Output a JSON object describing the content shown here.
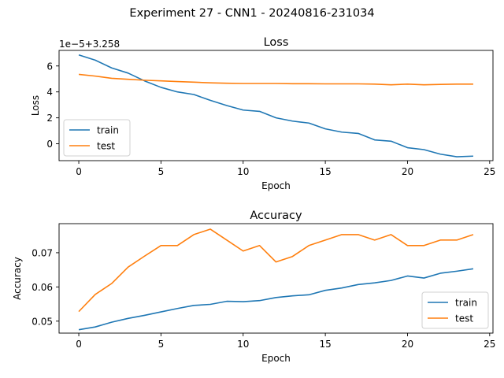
{
  "figure": {
    "title": "Experiment 27 - CNN1 - 20240816-231034"
  },
  "colors": {
    "train": "#1f77b4",
    "test": "#ff7f0e"
  },
  "chart_data": [
    {
      "type": "line",
      "title": "Loss",
      "xlabel": "Epoch",
      "ylabel": "Loss",
      "offset_label": "1e−5+3.258",
      "xlim": [
        -1.2,
        25.2
      ],
      "ylim": [
        -1.3,
        7.2
      ],
      "xticks": [
        0,
        5,
        10,
        15,
        20,
        25
      ],
      "yticks": [
        0,
        2,
        4,
        6
      ],
      "legend_position": "lower-left",
      "x": [
        0,
        1,
        2,
        3,
        4,
        5,
        6,
        7,
        8,
        9,
        10,
        11,
        12,
        13,
        14,
        15,
        16,
        17,
        18,
        19,
        20,
        21,
        22,
        23,
        24
      ],
      "series": [
        {
          "name": "train",
          "values": [
            6.85,
            6.45,
            5.85,
            5.45,
            4.85,
            4.35,
            4.0,
            3.8,
            3.35,
            2.95,
            2.6,
            2.5,
            2.0,
            1.75,
            1.6,
            1.15,
            0.9,
            0.8,
            0.3,
            0.2,
            -0.3,
            -0.45,
            -0.8,
            -1.0,
            -0.95
          ]
        },
        {
          "name": "test",
          "values": [
            5.35,
            5.22,
            5.05,
            4.97,
            4.9,
            4.85,
            4.8,
            4.75,
            4.7,
            4.67,
            4.65,
            4.65,
            4.65,
            4.63,
            4.63,
            4.62,
            4.62,
            4.62,
            4.6,
            4.55,
            4.6,
            4.55,
            4.58,
            4.6,
            4.6
          ]
        }
      ]
    },
    {
      "type": "line",
      "title": "Accuracy",
      "xlabel": "Epoch",
      "ylabel": "Accuracy",
      "xlim": [
        -1.2,
        25.2
      ],
      "ylim": [
        0.0465,
        0.0785
      ],
      "xticks": [
        0,
        5,
        10,
        15,
        20,
        25
      ],
      "yticks": [
        0.05,
        0.06,
        0.07
      ],
      "ytick_labels": [
        "0.05",
        "0.06",
        "0.07"
      ],
      "legend_position": "lower-right",
      "x": [
        0,
        1,
        2,
        3,
        4,
        5,
        6,
        7,
        8,
        9,
        10,
        11,
        12,
        13,
        14,
        15,
        16,
        17,
        18,
        19,
        20,
        21,
        22,
        23,
        24
      ],
      "series": [
        {
          "name": "train",
          "values": [
            0.0475,
            0.0483,
            0.0497,
            0.0508,
            0.0517,
            0.0527,
            0.0537,
            0.0546,
            0.0549,
            0.0558,
            0.0557,
            0.056,
            0.0569,
            0.0574,
            0.0577,
            0.059,
            0.0597,
            0.0607,
            0.0612,
            0.0619,
            0.0632,
            0.0626,
            0.064,
            0.0646,
            0.0653
          ]
        },
        {
          "name": "test",
          "values": [
            0.0528,
            0.0578,
            0.061,
            0.0658,
            0.069,
            0.0721,
            0.0721,
            0.0753,
            0.0769,
            0.0737,
            0.0705,
            0.0721,
            0.0673,
            0.0689,
            0.0721,
            0.0737,
            0.0753,
            0.0753,
            0.0737,
            0.0753,
            0.0721,
            0.0721,
            0.0737,
            0.0737,
            0.0753
          ]
        }
      ]
    }
  ]
}
